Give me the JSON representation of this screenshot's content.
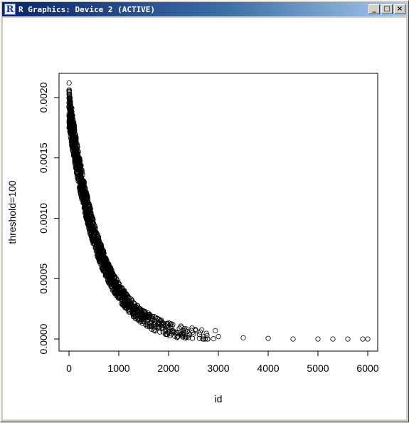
{
  "window": {
    "title": "R Graphics: Device 2 (ACTIVE)",
    "app_icon_letter": "R",
    "minimize_glyph": "_",
    "maximize_glyph": "□",
    "close_glyph": "×"
  },
  "chart_data": {
    "type": "scatter",
    "marker": "open-circle",
    "xlabel": "id",
    "ylabel": "threshold=100",
    "xlim": [
      -200,
      6200
    ],
    "ylim": [
      -0.0001,
      0.0022
    ],
    "x_ticks": [
      0,
      1000,
      2000,
      3000,
      4000,
      5000,
      6000
    ],
    "x_tick_labels": [
      "0",
      "1000",
      "2000",
      "3000",
      "4000",
      "5000",
      "6000"
    ],
    "y_ticks": [
      0.0,
      0.0005,
      0.001,
      0.0015,
      0.002
    ],
    "y_tick_labels": [
      "0.0000",
      "0.0005",
      "0.0010",
      "0.0015",
      "0.0020"
    ],
    "grid": false,
    "trend": {
      "form": "exponential-decay",
      "y_at_0": 0.00192,
      "decay_per_id": 0.00158
    },
    "sample_points": [
      {
        "x": 2,
        "y": 0.00212
      },
      {
        "x": 5,
        "y": 0.00206
      },
      {
        "x": 10,
        "y": 0.00199
      },
      {
        "x": 30,
        "y": 0.00185
      },
      {
        "x": 60,
        "y": 0.00175
      },
      {
        "x": 100,
        "y": 0.00162
      },
      {
        "x": 200,
        "y": 0.0014
      },
      {
        "x": 300,
        "y": 0.00122
      },
      {
        "x": 400,
        "y": 0.00102
      },
      {
        "x": 500,
        "y": 0.00088
      },
      {
        "x": 600,
        "y": 0.00076
      },
      {
        "x": 800,
        "y": 0.00054
      },
      {
        "x": 1000,
        "y": 0.0004
      },
      {
        "x": 1200,
        "y": 0.0003
      },
      {
        "x": 1500,
        "y": 0.00018
      },
      {
        "x": 2000,
        "y": 8e-05
      },
      {
        "x": 2500,
        "y": 4e-05
      },
      {
        "x": 3000,
        "y": 2e-05
      },
      {
        "x": 3500,
        "y": 1e-05
      },
      {
        "x": 4000,
        "y": 5e-06
      },
      {
        "x": 4500,
        "y": 0.0
      },
      {
        "x": 5000,
        "y": 0.0
      },
      {
        "x": 5300,
        "y": 0.0
      },
      {
        "x": 5600,
        "y": 0.0
      },
      {
        "x": 5900,
        "y": 0.0
      },
      {
        "x": 6000,
        "y": 0.0
      }
    ]
  }
}
